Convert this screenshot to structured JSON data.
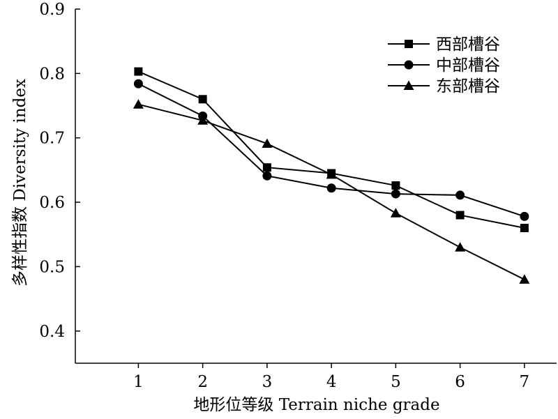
{
  "chart_data": {
    "type": "line",
    "title": "",
    "xlabel": "地形位等级 Terrain niche grade",
    "ylabel": "多样性指数 Diversity index",
    "x": [
      1,
      2,
      3,
      4,
      5,
      6,
      7
    ],
    "x_tick_labels": [
      "1",
      "2",
      "3",
      "4",
      "5",
      "6",
      "7"
    ],
    "xlim": [
      0.02,
      7.5
    ],
    "ylim": [
      0.35,
      0.9
    ],
    "y_ticks": [
      0.4,
      0.5,
      0.6,
      0.7,
      0.8,
      0.9
    ],
    "y_tick_labels": [
      "0.4",
      "0.5",
      "0.6",
      "0.7",
      "0.8",
      "0.9"
    ],
    "grid": false,
    "legend_position": "top-right",
    "line_color": "#000000",
    "series": [
      {
        "name": "西部槽谷",
        "marker": "square",
        "values": [
          0.803,
          0.76,
          0.654,
          0.645,
          0.626,
          0.58,
          0.56
        ]
      },
      {
        "name": "中部槽谷",
        "marker": "circle",
        "values": [
          0.784,
          0.734,
          0.641,
          0.622,
          0.613,
          0.611,
          0.578
        ]
      },
      {
        "name": "东部槽谷",
        "marker": "triangle",
        "values": [
          0.752,
          0.727,
          0.691,
          0.643,
          0.583,
          0.53,
          0.48
        ]
      }
    ]
  }
}
